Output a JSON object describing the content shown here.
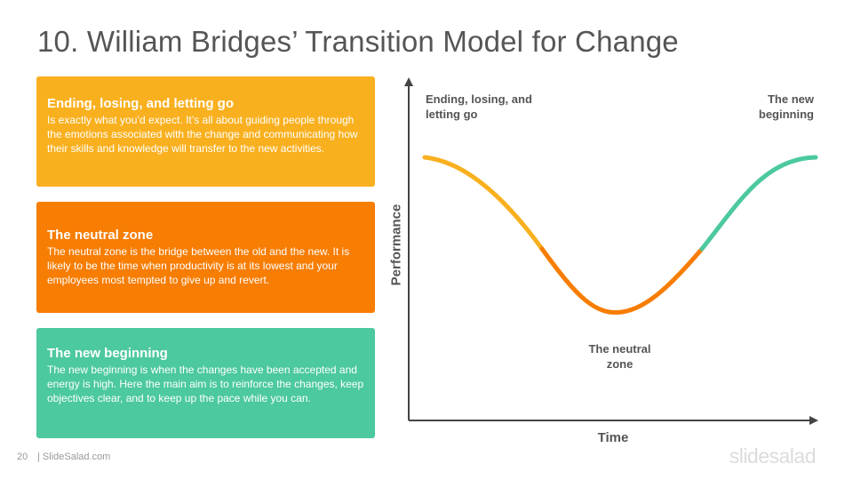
{
  "title": "10. William Bridges’ Transition Model for Change",
  "cards": [
    {
      "heading": "Ending, losing, and letting go",
      "body": "Is exactly what you’d expect. It’s all about guiding people through the emotions associated with the change and communicating how their skills and knowledge will transfer to the new activities.",
      "color": "#F9B01F"
    },
    {
      "heading": "The neutral zone",
      "body": "The neutral zone is the bridge between the old and the new. It is likely to be the time when productivity is at its lowest and your employees most tempted to give up and revert.",
      "color": "#F77D03"
    },
    {
      "heading": "The new beginning",
      "body": "The new beginning is when the changes have been accepted and energy is high. Here the main aim is to reinforce the changes, keep objectives clear, and to keep up the pace while you can.",
      "color": "#4CC99E"
    }
  ],
  "diagram": {
    "y_axis_label": "Performance",
    "x_axis_label": "Time",
    "stage_labels": {
      "ending": "Ending, losing, and letting go",
      "neutral": "The neutral zone",
      "new": "The new beginning"
    },
    "curve_colors": {
      "ending": "#F9B01F",
      "neutral": "#F77D03",
      "new": "#4CC99E",
      "axis": "#444444"
    }
  },
  "footer": {
    "page_number": "20",
    "site": "| SlideSalad.com",
    "logo": "slidesalad"
  }
}
